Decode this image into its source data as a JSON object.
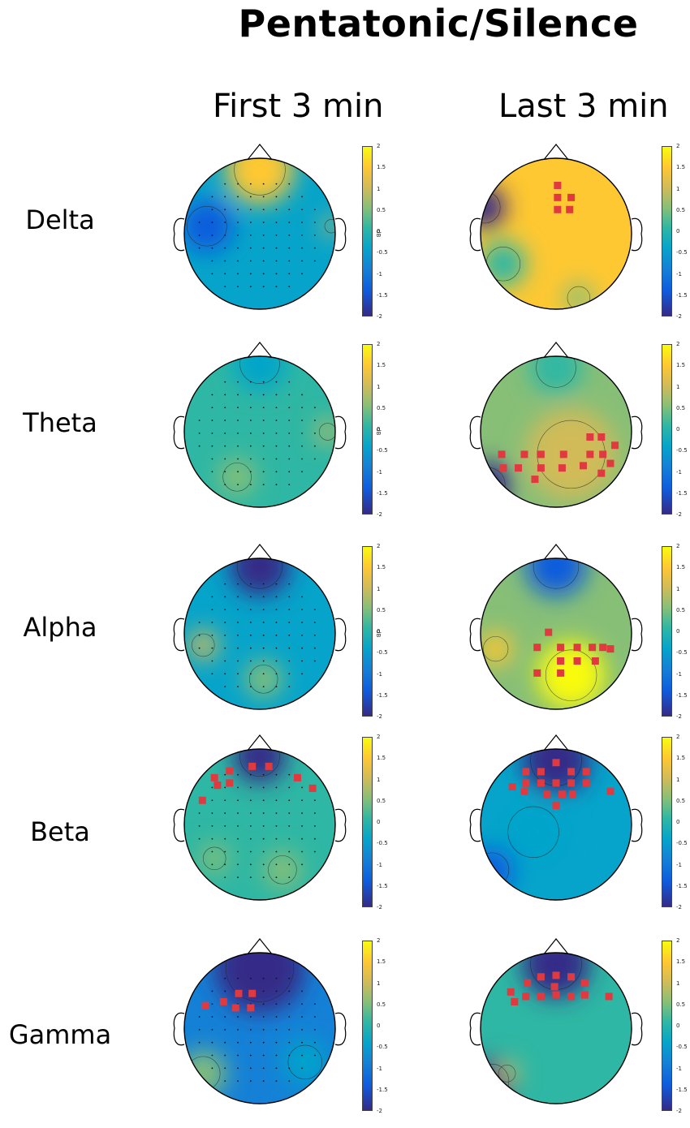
{
  "title": "Pentatonic/Silence",
  "columns": [
    "First 3 min",
    "Last 3 min"
  ],
  "bands": [
    "Delta",
    "Theta",
    "Alpha",
    "Beta",
    "Gamma"
  ],
  "colorbar": {
    "ticks": [
      "2",
      "1.5",
      "1",
      "0.5",
      "0",
      "-0.5",
      "-1",
      "-1.5",
      "-2"
    ],
    "unit": "dB",
    "range": [
      -2,
      2
    ]
  },
  "colormap": [
    "#352a87",
    "#0f5cdd",
    "#1481d6",
    "#06a4ca",
    "#2eb7a4",
    "#87bf77",
    "#d1bb59",
    "#fec832",
    "#f9fb0e"
  ],
  "marker_color": "#e0393f",
  "maps": [
    {
      "band": "Delta",
      "period": "First 3 min",
      "background_level": -0.3,
      "significant_electrodes": 0,
      "blobs": [
        {
          "u": 0.0,
          "v": 0.85,
          "r": 0.45,
          "level": 1.6
        },
        {
          "u": -0.7,
          "v": 0.1,
          "r": 0.35,
          "level": -1.3
        },
        {
          "u": 0.95,
          "v": 0.1,
          "r": 0.12,
          "level": 1.2
        }
      ]
    },
    {
      "band": "Delta",
      "period": "Last 3 min",
      "background_level": 1.3,
      "significant_electrodes": 5,
      "blobs": [
        {
          "u": -0.95,
          "v": 0.35,
          "r": 0.28,
          "level": -2.0
        },
        {
          "u": -0.7,
          "v": -0.4,
          "r": 0.3,
          "level": 0.2
        },
        {
          "u": 0.3,
          "v": -0.85,
          "r": 0.2,
          "level": 0.5
        }
      ]
    },
    {
      "band": "Theta",
      "period": "First 3 min",
      "background_level": 0.1,
      "significant_electrodes": 0,
      "blobs": [
        {
          "u": 0.0,
          "v": 0.9,
          "r": 0.35,
          "level": -0.5
        },
        {
          "u": -0.3,
          "v": -0.6,
          "r": 0.25,
          "level": 0.6
        },
        {
          "u": 0.9,
          "v": 0.0,
          "r": 0.15,
          "level": 1.2
        }
      ]
    },
    {
      "band": "Theta",
      "period": "Last 3 min",
      "background_level": 0.6,
      "significant_electrodes": 17,
      "blobs": [
        {
          "u": -0.9,
          "v": -0.7,
          "r": 0.3,
          "level": -2.0
        },
        {
          "u": 0.0,
          "v": 0.85,
          "r": 0.35,
          "level": 0.0
        },
        {
          "u": 0.2,
          "v": -0.3,
          "r": 0.6,
          "level": 1.0
        }
      ]
    },
    {
      "band": "Alpha",
      "period": "First 3 min",
      "background_level": -0.4,
      "significant_electrodes": 0,
      "blobs": [
        {
          "u": 0.0,
          "v": 0.9,
          "r": 0.4,
          "level": -1.9
        },
        {
          "u": -0.75,
          "v": -0.15,
          "r": 0.2,
          "level": 0.9
        },
        {
          "u": 0.05,
          "v": -0.6,
          "r": 0.25,
          "level": 0.6
        }
      ]
    },
    {
      "band": "Alpha",
      "period": "Last 3 min",
      "background_level": 0.3,
      "significant_electrodes": 12,
      "blobs": [
        {
          "u": 0.0,
          "v": 0.9,
          "r": 0.4,
          "level": -1.5
        },
        {
          "u": -0.8,
          "v": -0.2,
          "r": 0.22,
          "level": 1.6
        },
        {
          "u": 0.2,
          "v": -0.55,
          "r": 0.45,
          "level": 1.9
        }
      ]
    },
    {
      "band": "Beta",
      "period": "First 3 min",
      "background_level": 0.0,
      "significant_electrodes": 9,
      "blobs": [
        {
          "u": 0.0,
          "v": 0.9,
          "r": 0.35,
          "level": -1.9
        },
        {
          "u": -0.6,
          "v": -0.45,
          "r": 0.2,
          "level": 0.6
        },
        {
          "u": 0.3,
          "v": -0.6,
          "r": 0.25,
          "level": 0.6
        }
      ]
    },
    {
      "band": "Beta",
      "period": "Last 3 min",
      "background_level": -0.6,
      "significant_electrodes": 17,
      "blobs": [
        {
          "u": 0.0,
          "v": 0.85,
          "r": 0.45,
          "level": -2.0
        },
        {
          "u": -0.85,
          "v": -0.6,
          "r": 0.3,
          "level": -1.7
        },
        {
          "u": -0.3,
          "v": -0.1,
          "r": 0.45,
          "level": -0.3
        }
      ]
    },
    {
      "band": "Gamma",
      "period": "First 3 min",
      "background_level": -0.9,
      "significant_electrodes": 6,
      "blobs": [
        {
          "u": 0.0,
          "v": 0.8,
          "r": 0.6,
          "level": -1.9
        },
        {
          "u": -0.75,
          "v": -0.6,
          "r": 0.3,
          "level": 0.4
        },
        {
          "u": 0.6,
          "v": -0.45,
          "r": 0.3,
          "level": -0.3
        }
      ]
    },
    {
      "band": "Gamma",
      "period": "Last 3 min",
      "background_level": 0.0,
      "significant_electrodes": 14,
      "blobs": [
        {
          "u": 0.0,
          "v": 0.85,
          "r": 0.45,
          "level": -2.0
        },
        {
          "u": -0.85,
          "v": -0.7,
          "r": 0.3,
          "level": -1.8
        },
        {
          "u": -0.65,
          "v": -0.6,
          "r": 0.15,
          "level": 0.8
        }
      ]
    }
  ]
}
